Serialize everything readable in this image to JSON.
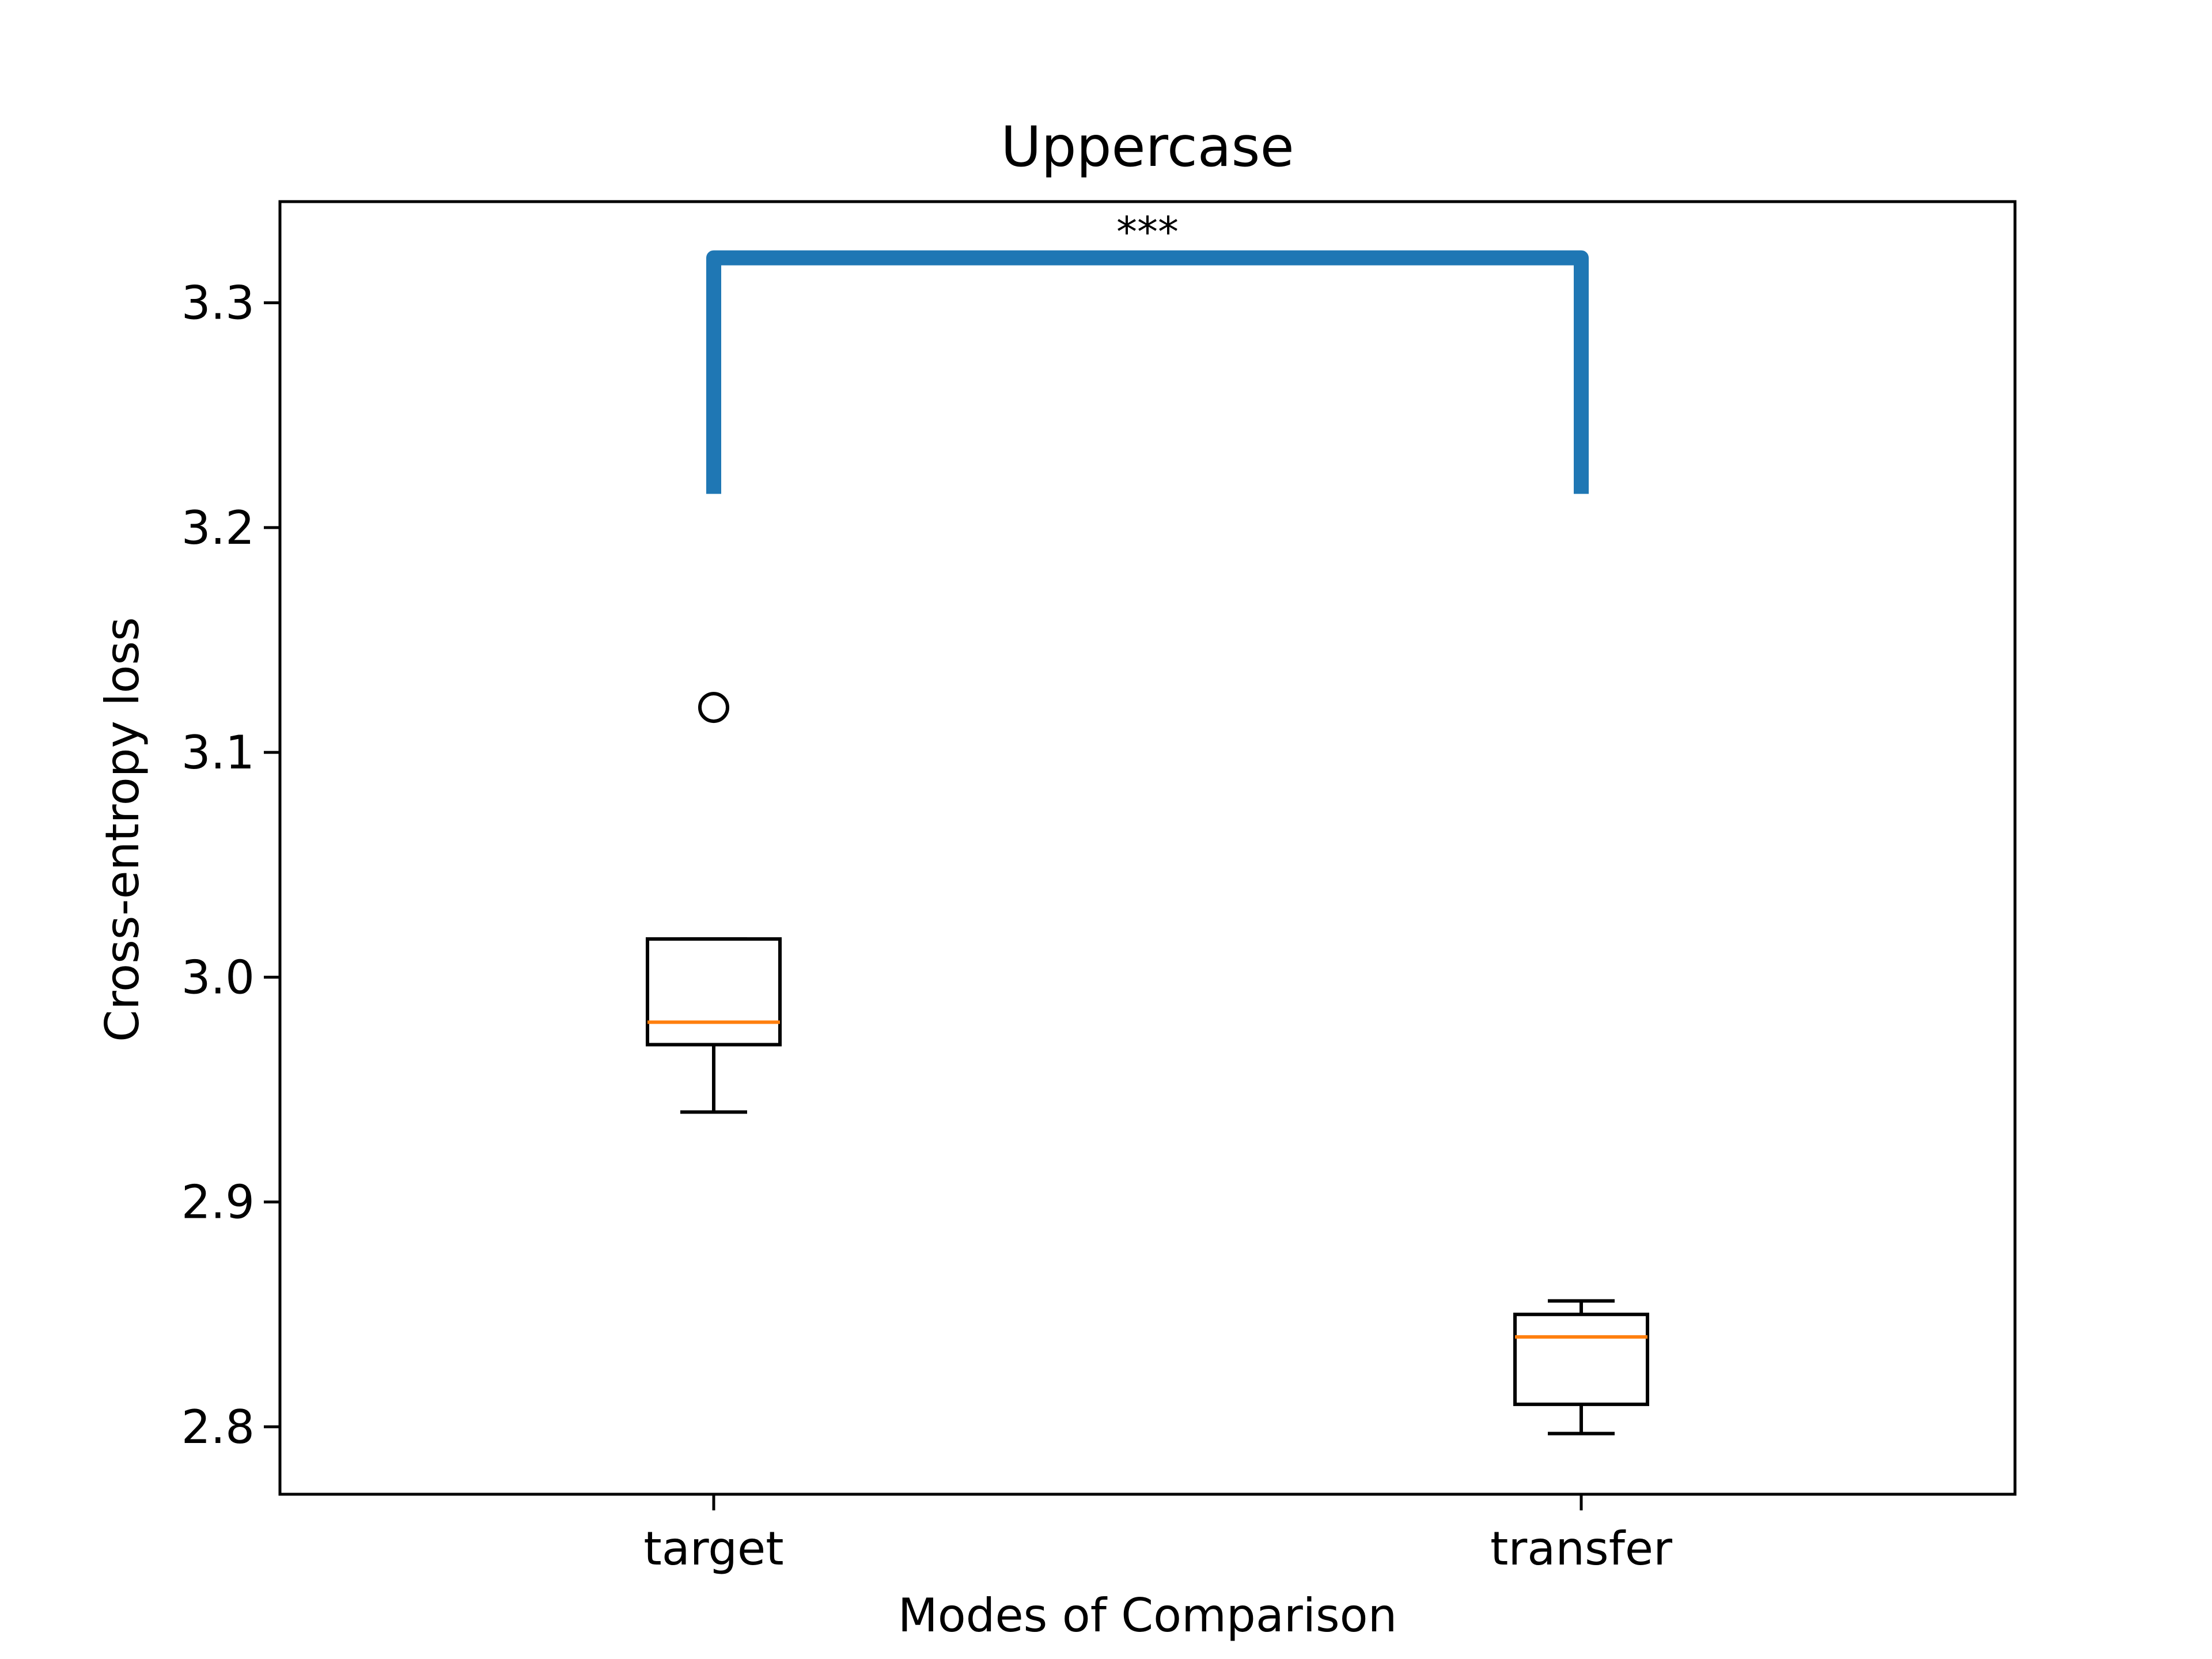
{
  "chart_data": {
    "type": "box",
    "title": "Uppercase",
    "xlabel": "Modes of Comparison",
    "ylabel": "Cross-entropy loss",
    "ylim": [
      2.77,
      3.345
    ],
    "yticks": [
      2.8,
      2.9,
      3.0,
      3.1,
      3.2,
      3.3
    ],
    "ytick_labels": [
      "2.8",
      "2.9",
      "3.0",
      "3.1",
      "3.2",
      "3.3"
    ],
    "grid": false,
    "categories": [
      "target",
      "transfer"
    ],
    "boxes": [
      {
        "name": "target",
        "whisker_low": 2.94,
        "q1": 2.97,
        "median": 2.98,
        "q3": 3.017,
        "whisker_high": 3.017,
        "outliers": [
          3.12
        ]
      },
      {
        "name": "transfer",
        "whisker_low": 2.797,
        "q1": 2.81,
        "median": 2.84,
        "q3": 2.85,
        "whisker_high": 2.856,
        "outliers": []
      }
    ],
    "annotation": {
      "label": "***",
      "from": "target",
      "to": "transfer",
      "y_low": 3.215,
      "y_high": 3.32,
      "color": "#1f77b4"
    },
    "colors": {
      "box": "#000000",
      "median": "#ff7f0e",
      "bracket": "#1f77b4"
    }
  }
}
